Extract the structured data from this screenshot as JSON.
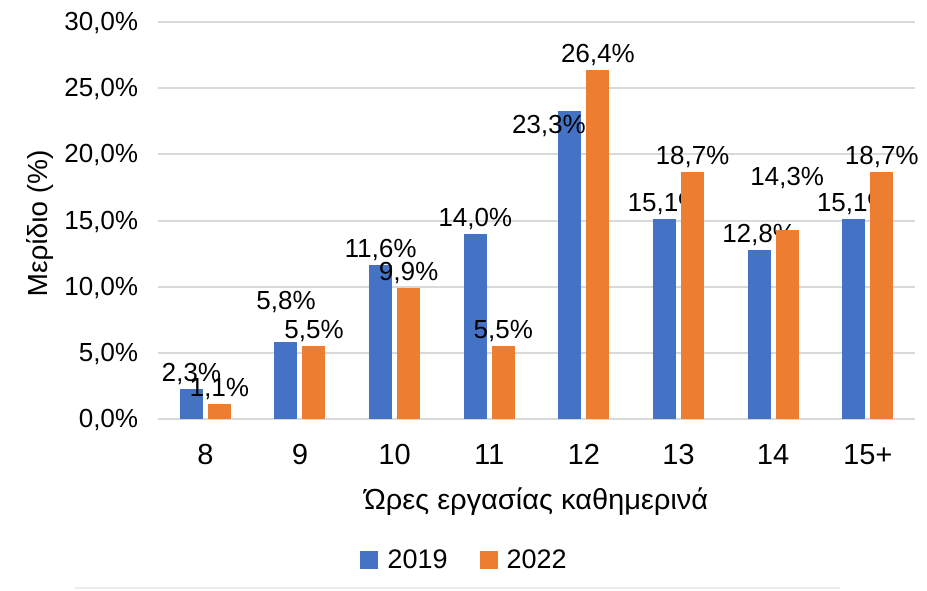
{
  "chart_data": {
    "type": "bar",
    "categories": [
      "8",
      "9",
      "10",
      "11",
      "12",
      "13",
      "14",
      "15+"
    ],
    "series": [
      {
        "name": "2019",
        "color": "#4472C4",
        "values": [
          2.3,
          5.8,
          11.6,
          14.0,
          23.3,
          15.1,
          12.8,
          15.1
        ],
        "labels": [
          "2,3%",
          "5,8%",
          "11,6%",
          "14,0%",
          "23,3%",
          "15,1%",
          "12,8%",
          "15,1%"
        ]
      },
      {
        "name": "2022",
        "color": "#ED7D31",
        "values": [
          1.1,
          5.5,
          9.9,
          5.5,
          26.4,
          18.7,
          14.3,
          18.7
        ],
        "labels": [
          "1,1%",
          "5,5%",
          "9,9%",
          "5,5%",
          "26,4%",
          "18,7%",
          "14,3%",
          "18,7%"
        ]
      }
    ],
    "xlabel": "Ώρες εργασίας καθημερινά",
    "ylabel": "Μερίδιο (%)",
    "ylim": [
      0,
      30
    ],
    "yticks": [
      {
        "value": 0,
        "label": "0,0%"
      },
      {
        "value": 5,
        "label": "5,0%"
      },
      {
        "value": 10,
        "label": "10,0%"
      },
      {
        "value": 15,
        "label": "15,0%"
      },
      {
        "value": 20,
        "label": "20,0%"
      },
      {
        "value": 25,
        "label": "25,0%"
      },
      {
        "value": 30,
        "label": "30,0%"
      }
    ],
    "grid": true,
    "legend_position": "bottom",
    "gridline_color": "#D9D9D9",
    "text_color": "#000000"
  }
}
